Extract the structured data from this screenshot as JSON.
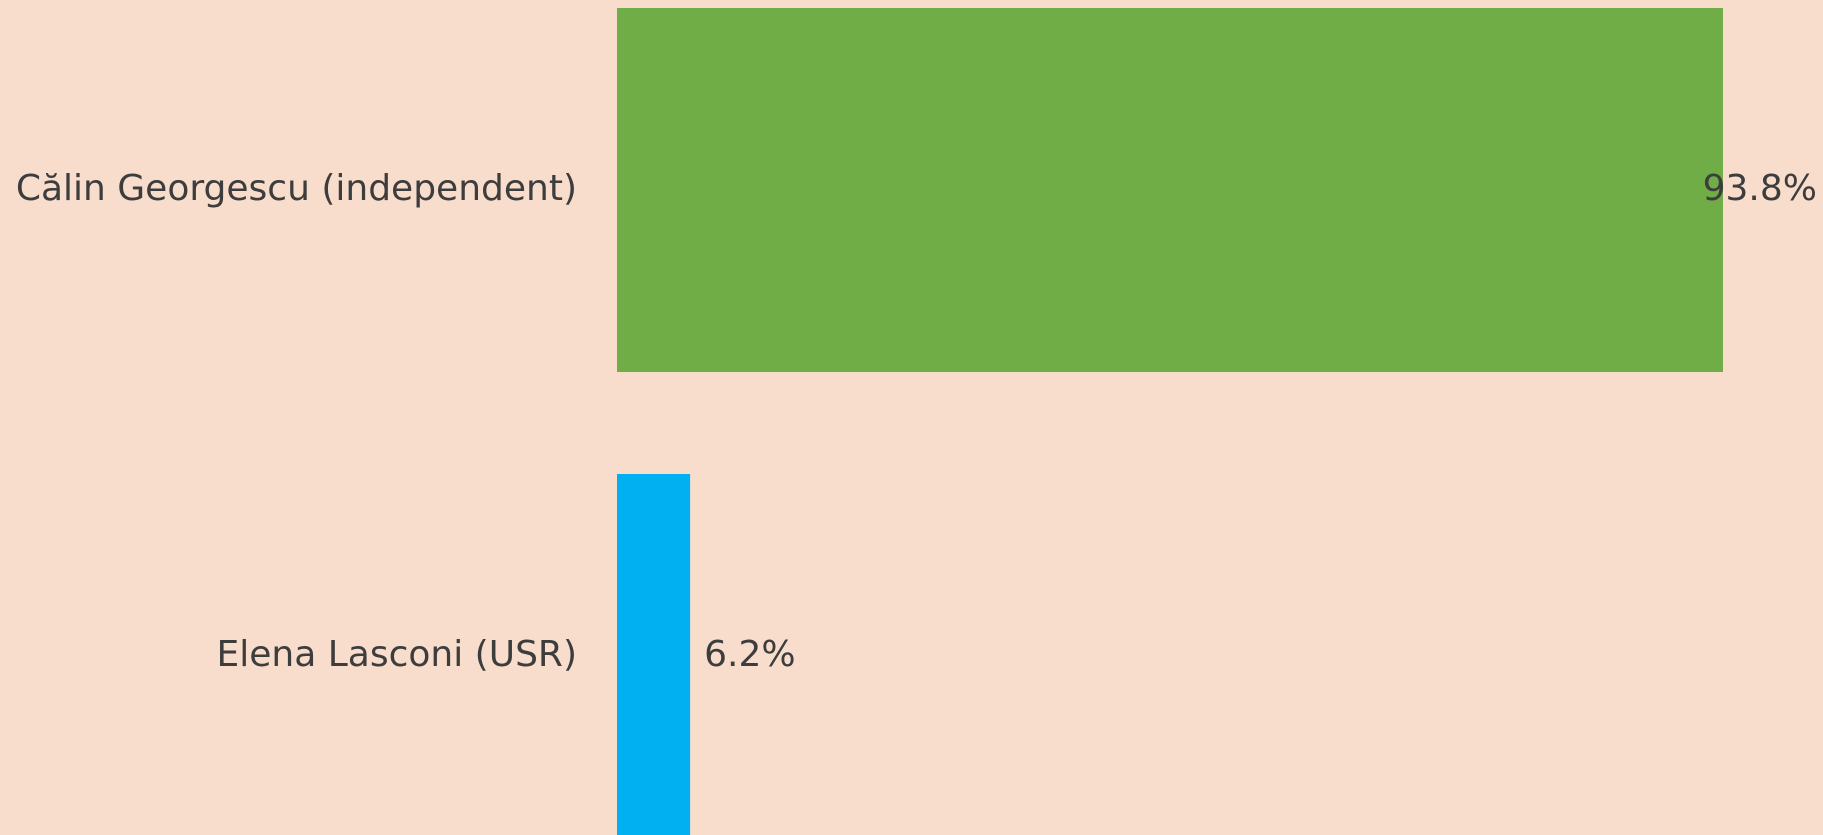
{
  "chart_data": {
    "type": "bar",
    "orientation": "horizontal",
    "categories": [
      "Călin Georgescu (independent)",
      "Elena Lasconi (USR)"
    ],
    "values": [
      93.8,
      6.2
    ],
    "value_labels": [
      "93.8%",
      "6.2%"
    ],
    "colors": [
      "#70ad47",
      "#00b0f0"
    ]
  }
}
